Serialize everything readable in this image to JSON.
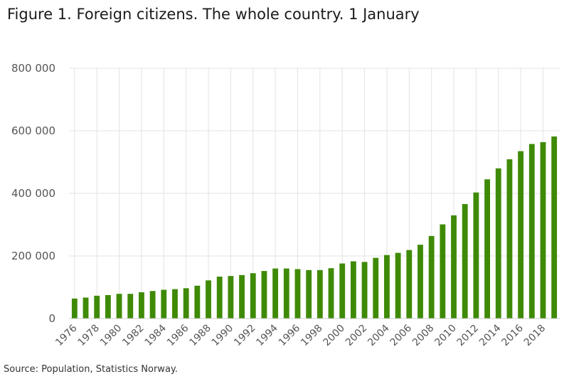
{
  "title": "Figure 1. Foreign citizens. The whole country. 1 January",
  "source": "Source: Population, Statistics Norway.",
  "colors": {
    "bar": "#3f8a05",
    "grid": "#e3e3e3",
    "axis": "#cfcfcf",
    "tick_text": "#555555"
  },
  "chart_data": {
    "type": "bar",
    "title": "Figure 1. Foreign citizens. The whole country. 1 January",
    "xlabel": "",
    "ylabel": "",
    "ylim": [
      0,
      800000
    ],
    "yticks": [
      0,
      200000,
      400000,
      600000,
      800000
    ],
    "ytick_labels": [
      "0",
      "200 000",
      "400 000",
      "600 000",
      "800 000"
    ],
    "grid": true,
    "legend": "none",
    "categories": [
      "1976",
      "1977",
      "1978",
      "1979",
      "1980",
      "1981",
      "1982",
      "1983",
      "1984",
      "1985",
      "1986",
      "1987",
      "1988",
      "1989",
      "1990",
      "1991",
      "1992",
      "1993",
      "1994",
      "1995",
      "1996",
      "1997",
      "1998",
      "1999",
      "2000",
      "2001",
      "2002",
      "2003",
      "2004",
      "2005",
      "2006",
      "2007",
      "2008",
      "2009",
      "2010",
      "2011",
      "2012",
      "2013",
      "2014",
      "2015",
      "2016",
      "2017",
      "2018",
      "2019"
    ],
    "xtick_labels": [
      "1976",
      "1978",
      "1980",
      "1982",
      "1984",
      "1986",
      "1988",
      "1990",
      "1992",
      "1994",
      "1996",
      "1998",
      "2000",
      "2002",
      "2004",
      "2006",
      "2008",
      "2010",
      "2012",
      "2014",
      "2016",
      "2018"
    ],
    "values": [
      64000,
      67000,
      73000,
      75000,
      79000,
      79000,
      84000,
      88000,
      92000,
      94000,
      97000,
      105000,
      122000,
      134000,
      136000,
      139000,
      145000,
      152000,
      160000,
      160000,
      158000,
      155000,
      155000,
      161000,
      176000,
      183000,
      181000,
      194000,
      203000,
      210000,
      219000,
      236000,
      264000,
      301000,
      330000,
      366000,
      403000,
      445000,
      480000,
      509000,
      535000,
      558000,
      564000,
      582000
    ]
  }
}
